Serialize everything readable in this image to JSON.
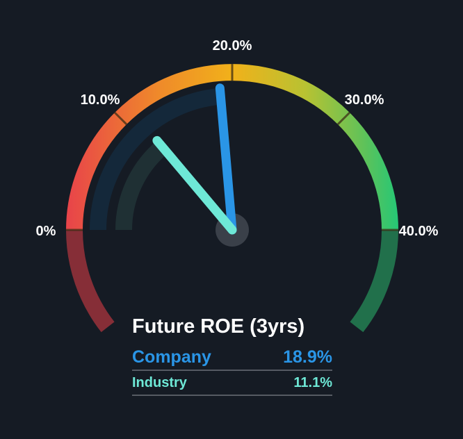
{
  "chart_data": {
    "type": "gauge",
    "title": "Future ROE (3yrs)",
    "range": [
      0,
      40
    ],
    "unit": "%",
    "tick_labels": [
      "0%",
      "10.0%",
      "20.0%",
      "30.0%",
      "40.0%"
    ],
    "tick_values": [
      0,
      10,
      20,
      30,
      40
    ],
    "series": [
      {
        "name": "Company",
        "value": 18.9,
        "display": "18.9%",
        "color": "#2a95e6"
      },
      {
        "name": "Industry",
        "value": 11.1,
        "display": "11.1%",
        "color": "#6ee8d6"
      }
    ]
  },
  "colors": {
    "background": "#151b24",
    "gradient_stops": [
      "#e8434a",
      "#ef8a2a",
      "#f1b11a",
      "#b8c232",
      "#5dc25a",
      "#25c776"
    ],
    "lower_left": "#862e37",
    "lower_right": "#21704b"
  }
}
